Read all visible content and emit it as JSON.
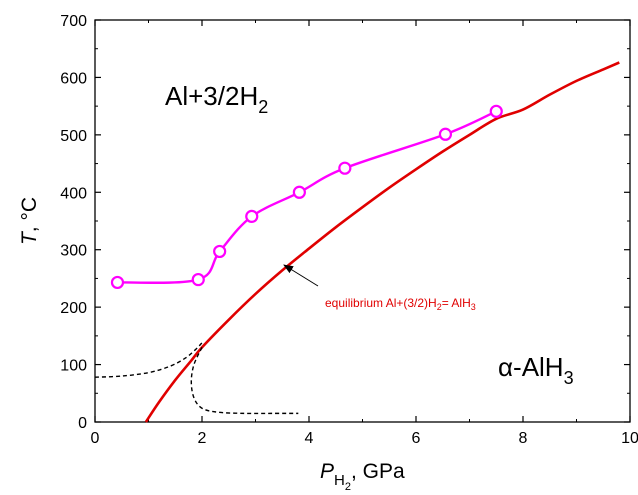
{
  "chart_data": {
    "type": "line",
    "xlim": [
      0,
      10
    ],
    "ylim": [
      0,
      700
    ],
    "grid": false,
    "x_ticks": [
      0,
      2,
      4,
      6,
      8,
      10
    ],
    "y_ticks": [
      0,
      100,
      200,
      300,
      400,
      500,
      600,
      700
    ],
    "xlabel": {
      "symbol": "P",
      "subscript": "H",
      "subscript2": "2",
      "unit": ", GPa"
    },
    "ylabel": {
      "symbol": "T",
      "unit": ", °C"
    },
    "series": [
      {
        "kind": "markers-with-spline",
        "color": "#ff00ff",
        "points": [
          [
            0.42,
            243
          ],
          [
            1.93,
            248
          ],
          [
            2.33,
            297
          ],
          [
            2.93,
            358
          ],
          [
            3.82,
            400
          ],
          [
            4.67,
            442
          ],
          [
            6.55,
            501
          ],
          [
            7.5,
            541
          ]
        ]
      },
      {
        "kind": "equilibrium-line",
        "color": "#e00000",
        "points": [
          [
            0.95,
            0
          ],
          [
            1.2,
            35
          ],
          [
            1.5,
            73
          ],
          [
            1.8,
            107
          ],
          [
            2.0,
            130
          ],
          [
            2.5,
            178
          ],
          [
            3.0,
            223
          ],
          [
            3.5,
            264
          ],
          [
            4.0,
            302
          ],
          [
            4.5,
            339
          ],
          [
            5.0,
            374
          ],
          [
            5.5,
            408
          ],
          [
            6.0,
            440
          ],
          [
            6.5,
            471
          ],
          [
            7.0,
            500
          ],
          [
            7.5,
            528
          ],
          [
            8.0,
            544
          ],
          [
            8.5,
            570
          ],
          [
            9.0,
            594
          ],
          [
            9.5,
            614
          ],
          [
            9.8,
            626
          ]
        ]
      },
      {
        "kind": "dashed-upper",
        "color": "#000000",
        "points": [
          [
            0,
            78
          ],
          [
            0.5,
            80
          ],
          [
            1.0,
            86
          ],
          [
            1.4,
            97
          ],
          [
            1.7,
            112
          ],
          [
            1.9,
            128
          ],
          [
            2.0,
            138
          ]
        ]
      },
      {
        "kind": "dashed-lower",
        "color": "#000000",
        "points": [
          [
            2.0,
            130
          ],
          [
            1.85,
            100
          ],
          [
            1.8,
            70
          ],
          [
            1.85,
            42
          ],
          [
            2.0,
            24
          ],
          [
            2.3,
            17
          ],
          [
            2.8,
            15
          ],
          [
            3.3,
            15
          ],
          [
            3.8,
            15
          ]
        ]
      }
    ],
    "annotations": {
      "upper_region": {
        "text": "Al+3/2H",
        "sub": "2"
      },
      "lower_region": {
        "text": "α-AlH",
        "sub": "3"
      },
      "equilibrium": {
        "text": "equilibrium Al+(3/2)H",
        "sub": "2",
        "tail": "= AlH",
        "sub2": "3"
      }
    }
  }
}
